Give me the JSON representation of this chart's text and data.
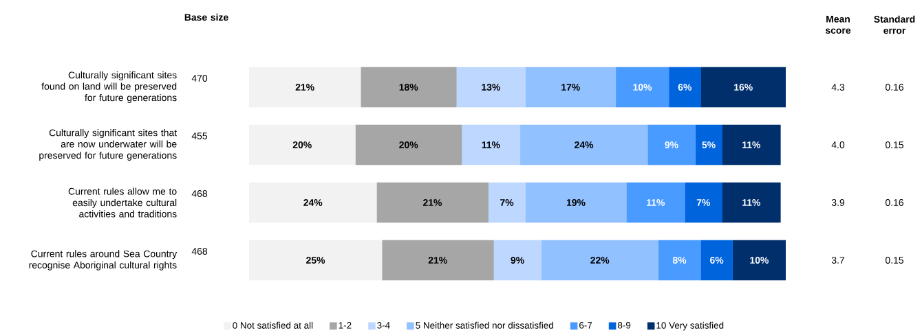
{
  "chart_data": {
    "type": "bar",
    "orientation": "horizontal",
    "stacked": true,
    "legend": "bottom",
    "tick_labels": "y",
    "categories": [
      "Culturally significant sites found on land will be preserved for future generations",
      "Culturally significant sites that are now underwater will be preserved for future generations",
      "Current rules allow me to easily undertake cultural activities and traditions",
      "Current rules around Sea Country recognise Aboriginal cultural rights"
    ],
    "series": [
      {
        "name": "0  Not satisfied at all",
        "color": "#f2f2f2",
        "values": [
          21,
          20,
          24,
          25
        ],
        "value_labels": [
          "21%",
          "20%",
          "24%",
          "25%"
        ]
      },
      {
        "name": "1-2",
        "color": "#a6a6a6",
        "values": [
          18,
          20,
          21,
          21
        ],
        "value_labels": [
          "18%",
          "20%",
          "21%",
          "21%"
        ]
      },
      {
        "name": "3-4",
        "color": "#bdd7ff",
        "values": [
          13,
          11,
          7,
          9
        ],
        "value_labels": [
          "13%",
          "11%",
          "7%",
          "9%"
        ]
      },
      {
        "name": "5 Neither satisfied nor dissatisfied",
        "color": "#91c1ff",
        "values": [
          17,
          24,
          19,
          22
        ],
        "value_labels": [
          "17%",
          "24%",
          "19%",
          "22%"
        ]
      },
      {
        "name": "6-7",
        "color": "#4a9bff",
        "values": [
          10,
          9,
          11,
          8
        ],
        "value_labels": [
          "10%",
          "9%",
          "11%",
          "8%"
        ]
      },
      {
        "name": "8-9",
        "color": "#0064dd",
        "values": [
          6,
          5,
          7,
          6
        ],
        "value_labels": [
          "6%",
          "5%",
          "7%",
          "6%"
        ]
      },
      {
        "name": "10 Very satisfied",
        "color": "#002f6c",
        "values": [
          16,
          11,
          11,
          10
        ],
        "value_labels": [
          "16%",
          "11%",
          "11%",
          "10%"
        ]
      }
    ],
    "annotations": [
      "Base size",
      "Mean score",
      "Standard error",
      "470",
      "4.3",
      "0.16",
      "455",
      "4.0",
      "0.15",
      "468",
      "3.9",
      "0.16",
      "468",
      "3.7",
      "0.15"
    ]
  }
}
